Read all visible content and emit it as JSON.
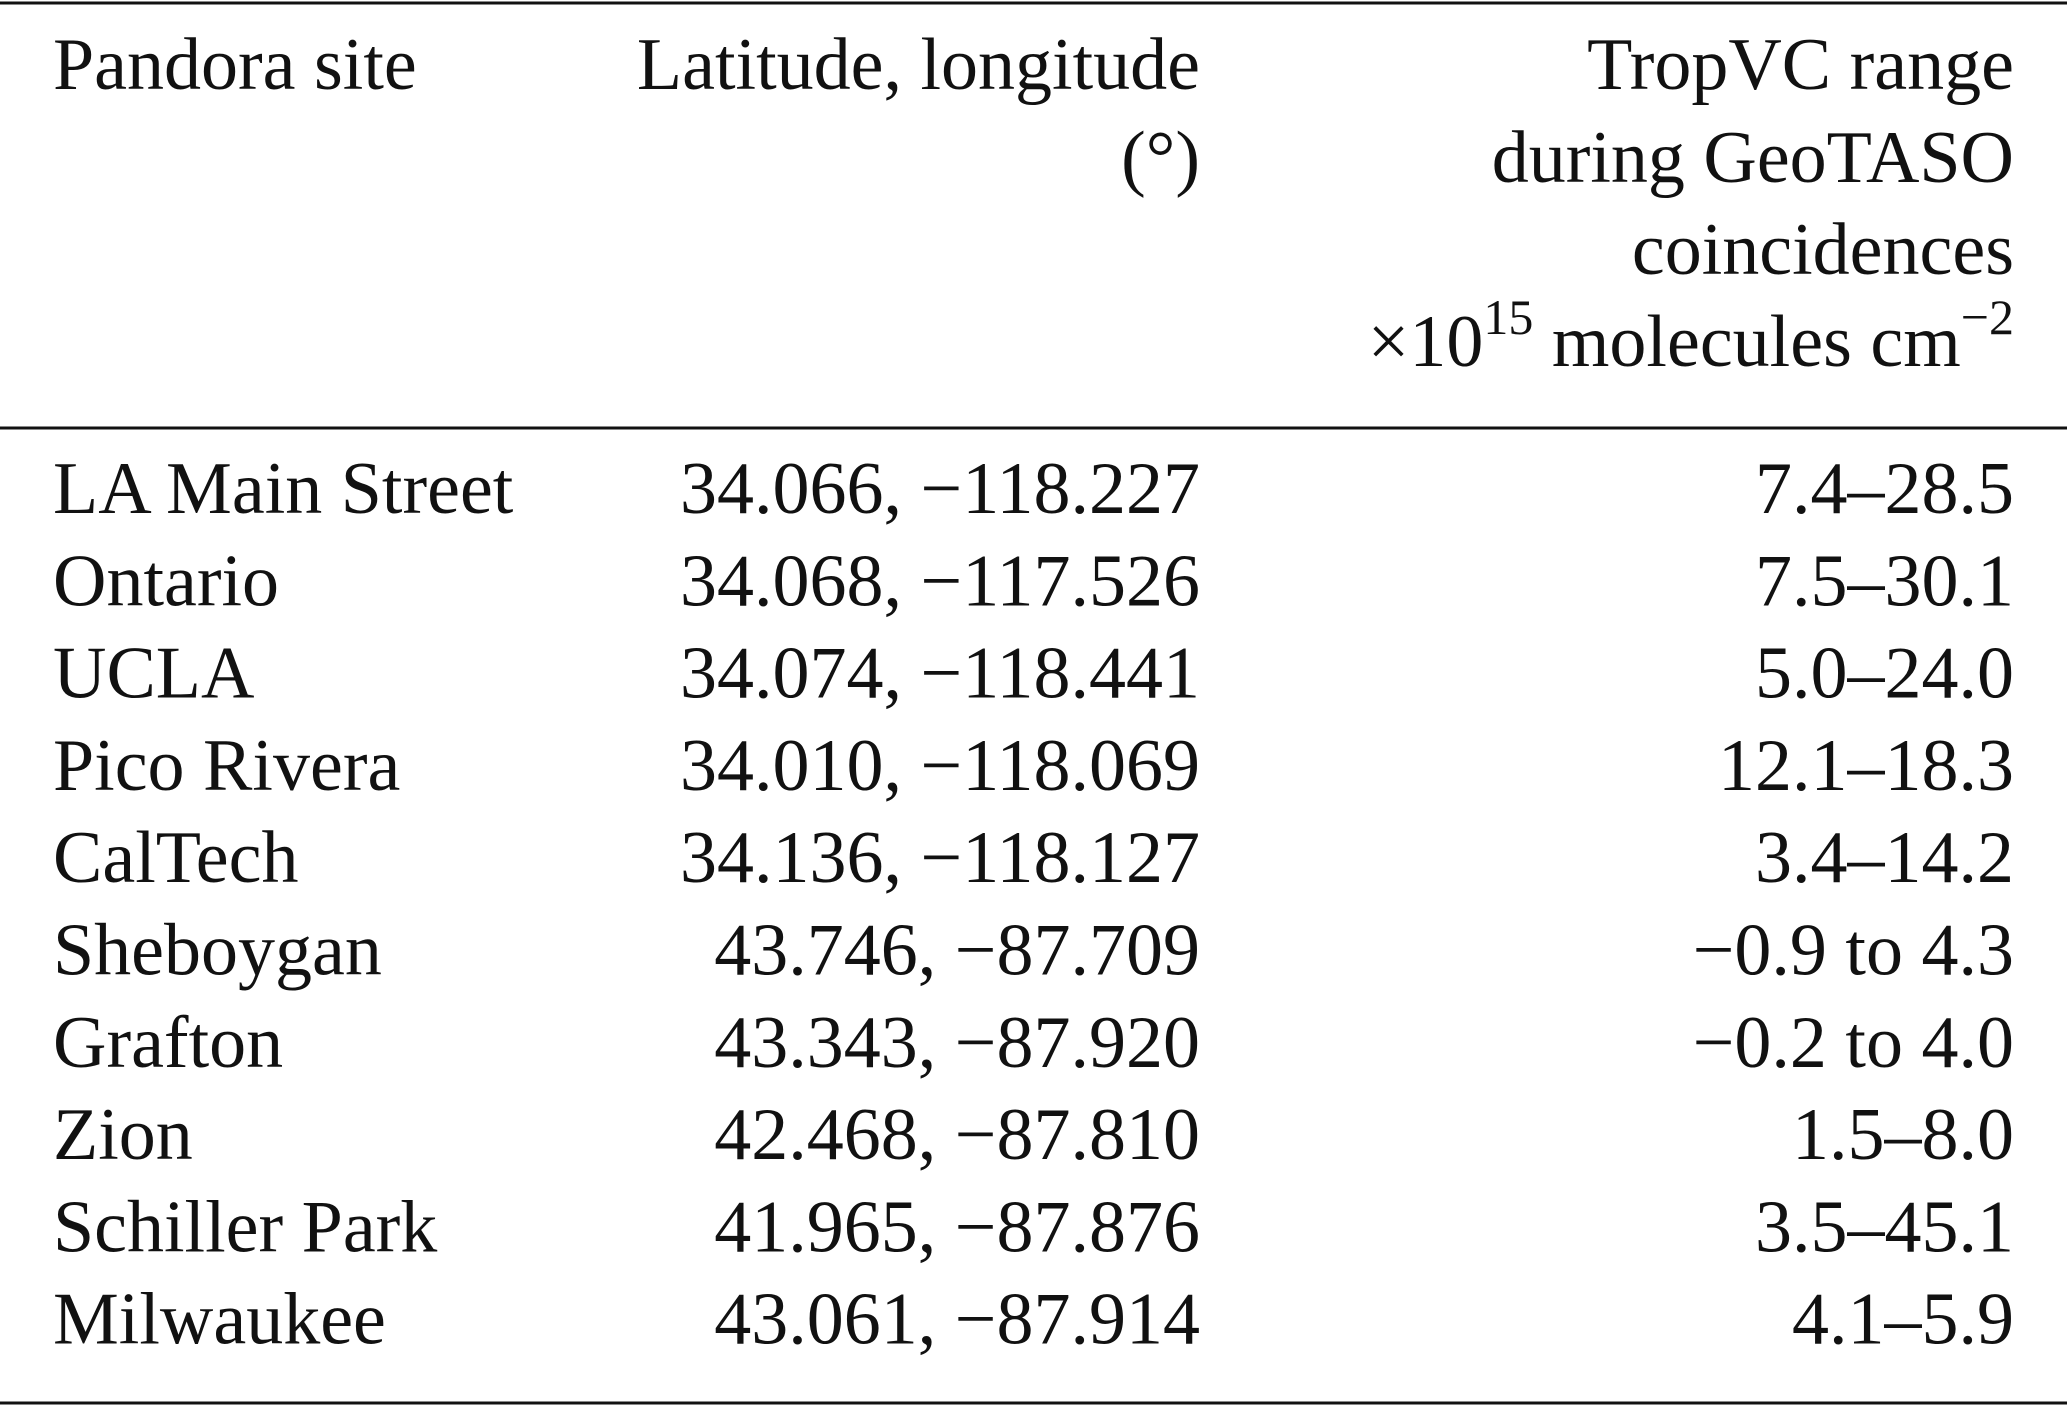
{
  "table": {
    "header": [
      [
        "Pandora site"
      ],
      [
        "Latitude, longitude",
        "(°)"
      ],
      [
        "TropVC range",
        "during GeoTASO",
        "coincidences",
        [
          {
            "text": "×10",
            "sup": "15"
          },
          {
            "text": " molecules cm",
            "sup": "−2"
          }
        ]
      ]
    ],
    "rows": [
      [
        "LA Main Street",
        "34.066, −118.227",
        "7.4–28.5"
      ],
      [
        "Ontario",
        "34.068, −117.526",
        "7.5–30.1"
      ],
      [
        "UCLA",
        "34.074, −118.441",
        "5.0–24.0"
      ],
      [
        "Pico Rivera",
        "34.010, −118.069",
        "12.1–18.3"
      ],
      [
        "CalTech",
        "34.136, −118.127",
        "3.4–14.2"
      ],
      [
        "Sheboygan",
        "43.746, −87.709",
        "−0.9 to 4.3"
      ],
      [
        "Grafton",
        "43.343, −87.920",
        "−0.2 to 4.0"
      ],
      [
        "Zion",
        "42.468, −87.810",
        "1.5–8.0"
      ],
      [
        "Schiller Park",
        "41.965, −87.876",
        "3.5–45.1"
      ],
      [
        "Milwaukee",
        "43.061, −87.914",
        "4.1–5.9"
      ]
    ]
  }
}
